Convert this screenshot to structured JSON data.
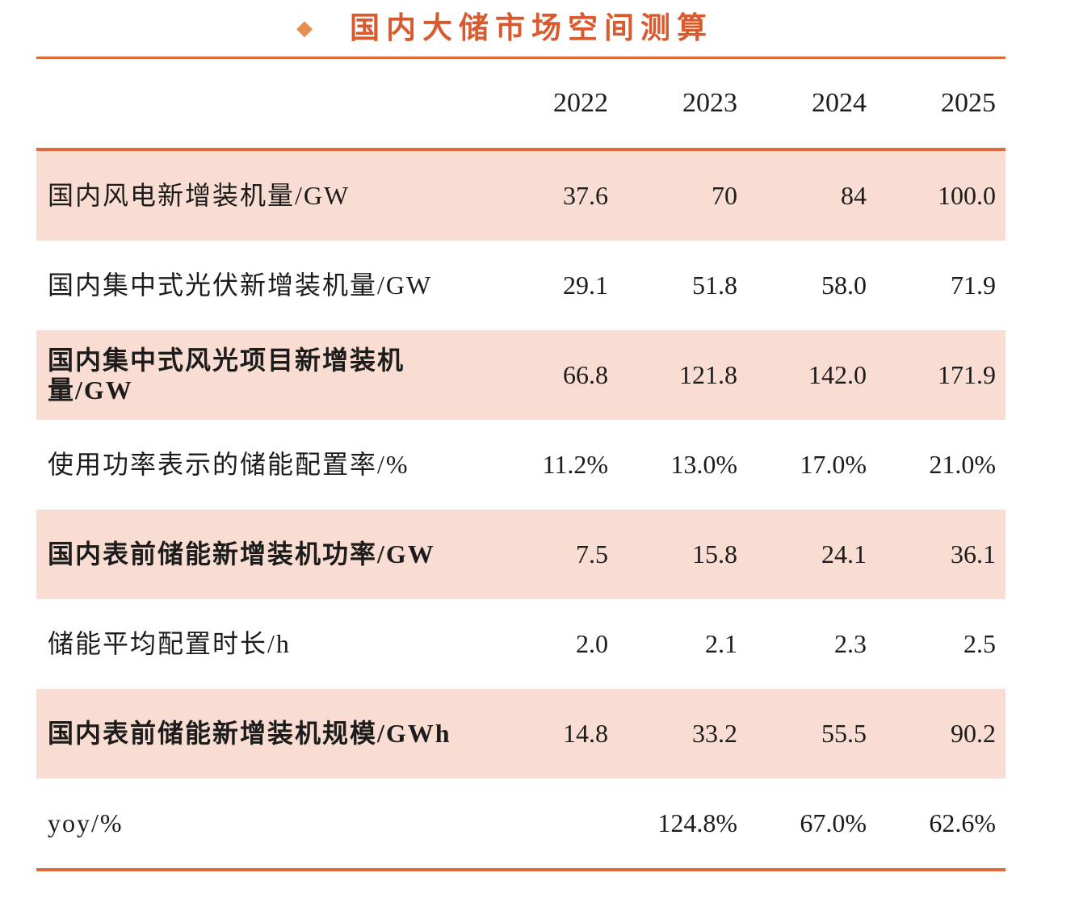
{
  "title": {
    "text": "国内大储市场空间测算",
    "bullet_icon": {
      "name": "diamond-icon",
      "glyph": "◆"
    }
  },
  "colors": {
    "title_orange": "#D85A2F",
    "bullet_orange": "#E6904F",
    "rule_orange": "#E2693C",
    "row_pink": "#F9DDD2",
    "text_black": "#1c1c1c"
  },
  "table": {
    "columns": [
      "2022",
      "2023",
      "2024",
      "2025"
    ],
    "rows": [
      {
        "label": "国内风电新增装机量/GW",
        "values": [
          "37.6",
          "70",
          "84",
          "100.0"
        ],
        "emphasis": false
      },
      {
        "label": "国内集中式光伏新增装机量/GW",
        "values": [
          "29.1",
          "51.8",
          "58.0",
          "71.9"
        ],
        "emphasis": false
      },
      {
        "label": "国内集中式风光项目新增装机量/GW",
        "values": [
          "66.8",
          "121.8",
          "142.0",
          "171.9"
        ],
        "emphasis": true
      },
      {
        "label": "使用功率表示的储能配置率/%",
        "values": [
          "11.2%",
          "13.0%",
          "17.0%",
          "21.0%"
        ],
        "emphasis": false
      },
      {
        "label": "国内表前储能新增装机功率/GW",
        "values": [
          "7.5",
          "15.8",
          "24.1",
          "36.1"
        ],
        "emphasis": true
      },
      {
        "label": "储能平均配置时长/h",
        "values": [
          "2.0",
          "2.1",
          "2.3",
          "2.5"
        ],
        "emphasis": false
      },
      {
        "label": "国内表前储能新增装机规模/GWh",
        "values": [
          "14.8",
          "33.2",
          "55.5",
          "90.2"
        ],
        "emphasis": true
      },
      {
        "label": "yoy/%",
        "values": [
          "",
          "124.8%",
          "67.0%",
          "62.6%"
        ],
        "emphasis": false
      }
    ]
  },
  "chart_data": {
    "type": "table",
    "title": "国内大储市场空间测算",
    "categories": [
      "2022",
      "2023",
      "2024",
      "2025"
    ],
    "series": [
      {
        "name": "国内风电新增装机量/GW",
        "values": [
          37.6,
          70,
          84,
          100.0
        ]
      },
      {
        "name": "国内集中式光伏新增装机量/GW",
        "values": [
          29.1,
          51.8,
          58.0,
          71.9
        ]
      },
      {
        "name": "国内集中式风光项目新增装机量/GW",
        "values": [
          66.8,
          121.8,
          142.0,
          171.9
        ]
      },
      {
        "name": "使用功率表示的储能配置率/%",
        "values": [
          11.2,
          13.0,
          17.0,
          21.0
        ],
        "unit": "%"
      },
      {
        "name": "国内表前储能新增装机功率/GW",
        "values": [
          7.5,
          15.8,
          24.1,
          36.1
        ]
      },
      {
        "name": "储能平均配置时长/h",
        "values": [
          2.0,
          2.1,
          2.3,
          2.5
        ]
      },
      {
        "name": "国内表前储能新增装机规模/GWh",
        "values": [
          14.8,
          33.2,
          55.5,
          90.2
        ]
      },
      {
        "name": "yoy/%",
        "values": [
          null,
          124.8,
          67.0,
          62.6
        ],
        "unit": "%"
      }
    ]
  }
}
